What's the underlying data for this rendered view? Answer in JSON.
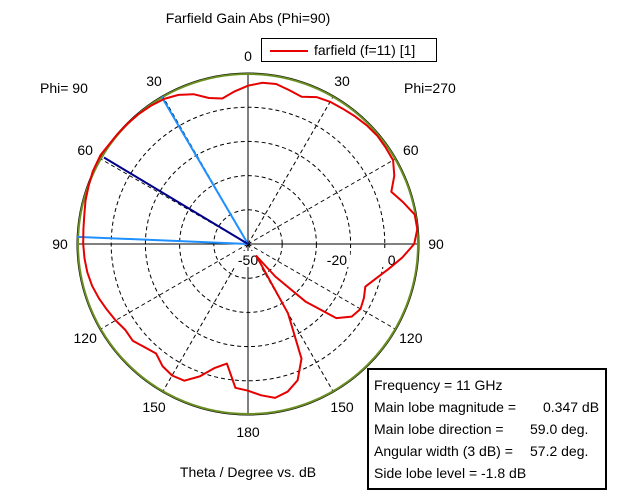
{
  "title": "Farfield Gain Abs (Phi=90)",
  "phi_left_label": "Phi= 90",
  "phi_right_label": "Phi=270",
  "bottom_label": "Theta / Degree vs. dB",
  "legend": {
    "label": "farfield (f=11) [1]",
    "color": "#e60000"
  },
  "info": {
    "frequency": "Frequency = 11 GHz",
    "main_lobe_magnitude_label": "Main lobe magnitude =",
    "main_lobe_magnitude_value": "0.347 dB",
    "main_lobe_direction_label": "Main lobe direction =",
    "main_lobe_direction_value": "59.0 deg.",
    "angular_width_label": "Angular width (3 dB) =",
    "angular_width_value": "57.2 deg.",
    "side_lobe_level": "Side lobe level =   -1.8 dB"
  },
  "chart_data": {
    "type": "polar",
    "title": "Farfield Gain Abs (Phi=90)",
    "xlabel": "Theta / Degree vs. dB",
    "angle_ticks_left": [
      "0",
      "30",
      "60",
      "90",
      "120",
      "150",
      "180"
    ],
    "angle_ticks_right": [
      "30",
      "60",
      "90",
      "120",
      "150"
    ],
    "radial_ticks": [
      "-50",
      "-20",
      "0"
    ],
    "radial_range_db": [
      -50,
      0
    ],
    "colors": {
      "pattern": "#e60000",
      "reference_circle": "#6b8e23",
      "main_lobe": "#00008b",
      "beamwidth": "#1e90ff"
    },
    "main_lobe_direction_deg": 59.0,
    "beamwidth_deg": 57.2,
    "beamwidth_edges_deg": [
      30.4,
      87.6
    ],
    "series": [
      {
        "name": "farfield (f=11) [1]",
        "theta_deg": [
          0,
          5,
          10,
          15,
          20,
          25,
          30,
          35,
          40,
          45,
          50,
          55,
          59,
          65,
          70,
          75,
          80,
          85,
          90,
          95,
          100,
          105,
          110,
          115,
          120,
          125,
          130,
          135,
          140,
          145,
          150,
          155,
          160,
          165,
          170,
          175,
          180
        ],
        "gain_db": [
          -3.7,
          -5.2,
          -6.8,
          -5.8,
          -3.4,
          -1.9,
          -1.0,
          -0.6,
          -0.35,
          -0.2,
          -0.1,
          0.0,
          0.347,
          0.1,
          -0.4,
          -0.8,
          -1.4,
          -1.7,
          -1.8,
          -2.0,
          -2.3,
          -2.8,
          -3.6,
          -4.5,
          -5.3,
          -6.2,
          -6.0,
          -7.3,
          -8.2,
          -6.4,
          -5.6,
          -5.9,
          -8.8,
          -12.5,
          -14.5,
          -7.8,
          -7.1
        ]
      },
      {
        "name": "",
        "theta_deg": [
          180,
          185,
          190,
          195,
          200,
          205,
          210,
          215,
          220,
          225,
          230,
          235,
          240,
          245,
          250,
          255,
          260,
          265,
          270,
          275,
          280,
          285,
          290,
          295,
          300,
          305,
          310,
          315,
          320,
          325,
          330,
          335,
          340,
          345,
          350,
          355,
          360
        ],
        "gain_db": [
          -7.1,
          -5.6,
          -4.3,
          -5.3,
          -7.6,
          -13.0,
          -26.6,
          -45.7,
          -37.6,
          -26.1,
          -16.3,
          -13.0,
          -12.0,
          -12.6,
          -13.5,
          -11.2,
          -8.2,
          -4.7,
          -1.4,
          -0.3,
          -0.5,
          -3.0,
          -5.4,
          -2.8,
          -1.0,
          -0.85,
          -0.7,
          -0.9,
          -1.3,
          -1.7,
          -2.0,
          -2.6,
          -4.2,
          -3.4,
          -2.5,
          -2.7,
          -3.7
        ]
      }
    ]
  }
}
